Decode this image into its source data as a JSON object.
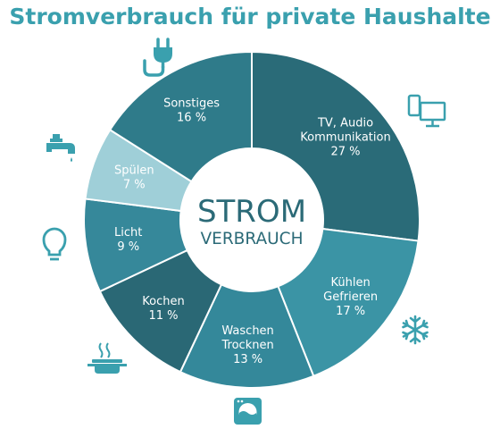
{
  "chart_data": {
    "type": "pie",
    "variant": "donut",
    "title": "Stromverbrauch für private Haushalte",
    "center_label": {
      "line1": "STROM",
      "line2": "VERBRAUCH"
    },
    "categories": [
      "TV, Audio Kommunikation",
      "Kühlen Gefrieren",
      "Waschen Trocknen",
      "Kochen",
      "Licht",
      "Spülen",
      "Sonstiges"
    ],
    "values": [
      27,
      17,
      13,
      11,
      9,
      7,
      16
    ],
    "unit": "%",
    "segments": [
      {
        "lines": [
          "TV, Audio",
          "Kommunikation"
        ],
        "value_text": "27 %",
        "value": 27,
        "color": "#2a6b78",
        "icon": "computer-icon"
      },
      {
        "lines": [
          "Kühlen",
          "Gefrieren"
        ],
        "value_text": "17 %",
        "value": 17,
        "color": "#3b94a5",
        "icon": "snowflake-icon"
      },
      {
        "lines": [
          "Waschen",
          "Trocknen"
        ],
        "value_text": "13 %",
        "value": 13,
        "color": "#34889a",
        "icon": "washing-machine-icon"
      },
      {
        "lines": [
          "Kochen"
        ],
        "value_text": "11 %",
        "value": 11,
        "color": "#2a6875",
        "icon": "cooking-pot-icon"
      },
      {
        "lines": [
          "Licht"
        ],
        "value_text": "9 %",
        "value": 9,
        "color": "#36889a",
        "icon": "light-bulb-icon"
      },
      {
        "lines": [
          "Spülen"
        ],
        "value_text": "7 %",
        "value": 7,
        "color": "#9fcfd8",
        "icon": "faucet-icon"
      },
      {
        "lines": [
          "Sonstiges"
        ],
        "value_text": "16 %",
        "value": 16,
        "color": "#2f7b8a",
        "icon": "power-plug-icon"
      }
    ],
    "colors": {
      "title": "#3aa0ae",
      "icon": "#3aa0ae",
      "center_text": "#2b6a77",
      "separator": "#ffffff"
    }
  }
}
